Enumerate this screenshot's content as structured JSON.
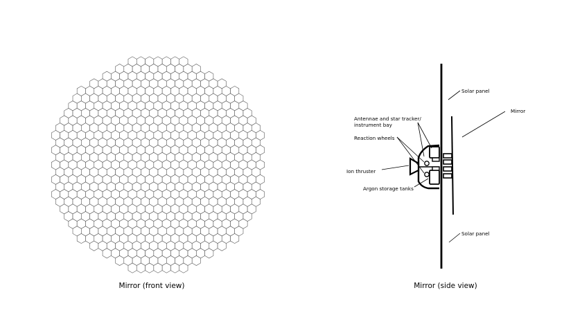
{
  "captions": {
    "front": "Mirror (front view)",
    "side": "Mirror (side view)"
  },
  "labels": {
    "solar_panel_top": "Solar panel",
    "mirror": "Mirror",
    "antennae_line1": "Antennae and star tracker/",
    "antennae_line2": "instrument bay",
    "reaction_wheels": "Reaction wheels",
    "ion_thruster": "Ion thruster",
    "argon_tanks": "Argon storage tanks",
    "solar_panel_bottom": "Solar panel"
  },
  "colors": {
    "line": "#000000",
    "hex_stroke": "#4a4a4a",
    "background": "#ffffff"
  }
}
